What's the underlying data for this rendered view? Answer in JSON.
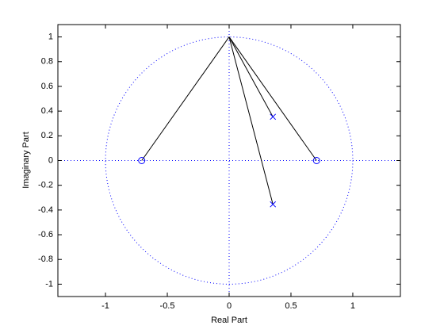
{
  "chart_data": {
    "type": "zplane",
    "xlabel": "Real Part",
    "ylabel": "Imaginary Part",
    "xlim": [
      -1.385,
      1.385
    ],
    "ylim": [
      -1.1,
      1.1
    ],
    "xticks": [
      -1,
      -0.5,
      0,
      0.5,
      1
    ],
    "yticks": [
      -1,
      -0.8,
      -0.6,
      -0.4,
      -0.2,
      0,
      0.2,
      0.4,
      0.6,
      0.8,
      1
    ],
    "unit_circle": true,
    "marker_color": "#0000ff",
    "line_color": "#000000",
    "vector_origin": [
      0,
      1
    ],
    "zeros": {
      "x": [
        -0.707,
        0.707
      ],
      "y": [
        0,
        0
      ]
    },
    "poles": {
      "x": [
        0.354,
        0.354
      ],
      "y": [
        0.354,
        -0.354
      ]
    }
  }
}
